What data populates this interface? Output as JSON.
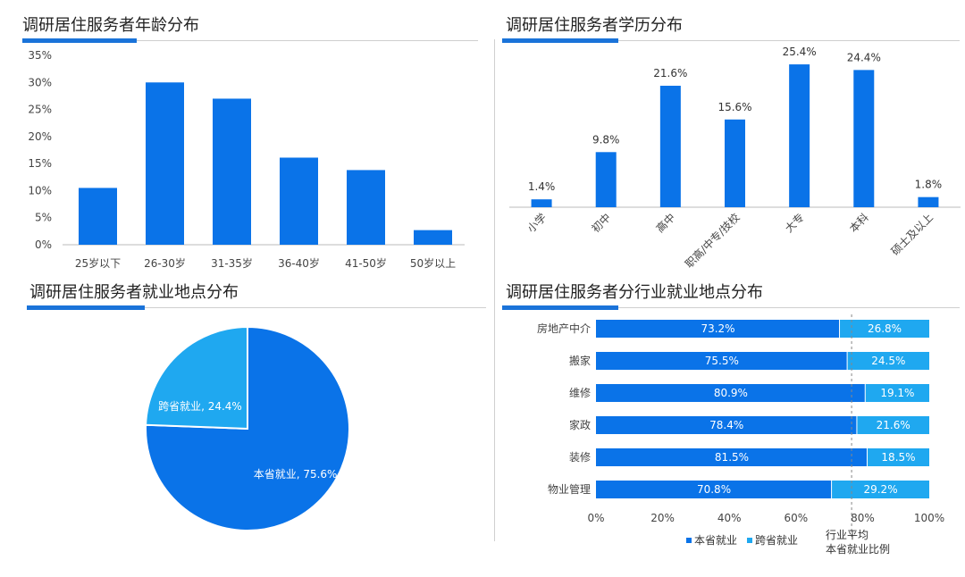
{
  "colors": {
    "primary": "#0a73e8",
    "secondary": "#1fa8f0",
    "accent": "#1a73d9"
  },
  "panels": {
    "age_title": "调研居住服务者年龄分布",
    "edu_title": "调研居住服务者学历分布",
    "loc_title": "调研居住服务者就业地点分布",
    "ind_title": "调研居住服务者分行业就业地点分布"
  },
  "chart_data": [
    {
      "type": "bar",
      "title": "调研居住服务者年龄分布",
      "categories": [
        "25岁以下",
        "26-30岁",
        "31-35岁",
        "36-40岁",
        "41-50岁",
        "50岁以上"
      ],
      "values": [
        10.5,
        30,
        27,
        16.1,
        13.8,
        2.7
      ],
      "yticks": [
        "0%",
        "5%",
        "10%",
        "15%",
        "20%",
        "25%",
        "30%",
        "35%"
      ],
      "ylim": [
        0,
        35
      ]
    },
    {
      "type": "bar",
      "title": "调研居住服务者学历分布",
      "categories": [
        "小学",
        "初中",
        "高中",
        "职高/中专/技校",
        "大专",
        "本科",
        "硕士及以上"
      ],
      "values": [
        1.4,
        9.8,
        21.6,
        15.6,
        25.4,
        24.4,
        1.8
      ],
      "labels": [
        "1.4%",
        "9.8%",
        "21.6%",
        "15.6%",
        "25.4%",
        "24.4%",
        "1.8%"
      ],
      "ylim": [
        0,
        27
      ]
    },
    {
      "type": "pie",
      "title": "调研居住服务者就业地点分布",
      "slices": [
        {
          "label": "本省就业, 75.6%",
          "value": 75.6
        },
        {
          "label": "跨省就业, 24.4%",
          "value": 24.4
        }
      ]
    },
    {
      "type": "bar",
      "orientation": "horizontal-stacked",
      "title": "调研居住服务者分行业就业地点分布",
      "categories": [
        "房地产中介",
        "搬家",
        "维修",
        "家政",
        "装修",
        "物业管理"
      ],
      "series": [
        {
          "name": "本省就业",
          "values": [
            73.2,
            75.5,
            80.9,
            78.4,
            81.5,
            70.8
          ],
          "labels": [
            "73.2%",
            "75.5%",
            "80.9%",
            "78.4%",
            "81.5%",
            "70.8%"
          ]
        },
        {
          "name": "跨省就业",
          "values": [
            26.8,
            24.5,
            19.1,
            21.6,
            18.5,
            29.2
          ],
          "labels": [
            "26.8%",
            "24.5%",
            "19.1%",
            "21.6%",
            "18.5%",
            "29.2%"
          ]
        }
      ],
      "xticks": [
        "0%",
        "20%",
        "40%",
        "60%",
        "80%",
        "100%"
      ],
      "xlim": [
        0,
        100
      ],
      "reference_line": {
        "value": 76.7,
        "label_line1": "行业平均",
        "label_line2": "本省就业比例"
      }
    }
  ]
}
